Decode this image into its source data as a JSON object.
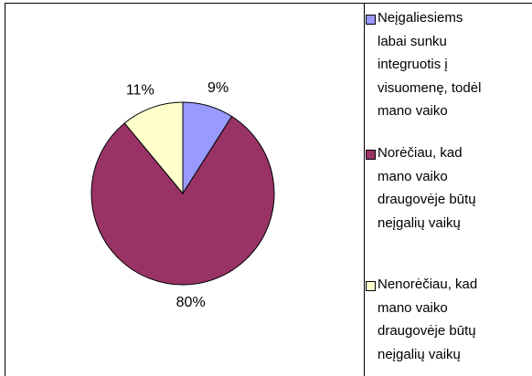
{
  "chart_data": {
    "type": "pie",
    "series": [
      {
        "name": "Neįgaliesiems labai sunku integruotis į visuomenę, todėl mano vaiko",
        "color": "#9999ff"
      },
      {
        "name": "Norėčiau, kad mano vaiko draugovėje būtų neįgalių vaikų",
        "color": "#993366"
      },
      {
        "name": "Nenorėčiau, kad mano vaiko draugovėje būtų neįgalių vaikų",
        "color": "#ffffcc"
      }
    ],
    "values": [
      9,
      80,
      11
    ],
    "value_labels": [
      "9%",
      "80%",
      "11%"
    ]
  }
}
